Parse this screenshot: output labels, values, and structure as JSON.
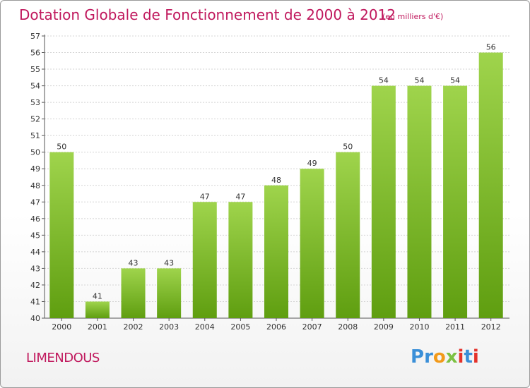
{
  "title": "Dotation Globale de Fonctionnement de 2000 à 2012",
  "subtitle": "(en milliers d'€)",
  "commune": "LIMENDOUS",
  "logo": {
    "text": "Proxiti",
    "letters": [
      "P",
      "r",
      "o",
      "x",
      "i",
      "t",
      "i"
    ],
    "colors": [
      "#3a8fd8",
      "#3a8fd8",
      "#f29a1a",
      "#7cc142",
      "#e4322b",
      "#3a8fd8",
      "#e4322b"
    ]
  },
  "colors": {
    "accent": "#c0185d",
    "bar_top": "#9fd44c",
    "bar_bottom": "#5f9e10",
    "grid": "#d4d4d4"
  },
  "chart_data": {
    "type": "bar",
    "categories": [
      "2000",
      "2001",
      "2002",
      "2003",
      "2004",
      "2005",
      "2006",
      "2007",
      "2008",
      "2009",
      "2010",
      "2011",
      "2012"
    ],
    "values": [
      50,
      41,
      43,
      43,
      47,
      47,
      48,
      49,
      50,
      54,
      54,
      54,
      56
    ],
    "title": "Dotation Globale de Fonctionnement de 2000 à 2012",
    "subtitle": "(en milliers d'€)",
    "xlabel": "",
    "ylabel": "",
    "ylim": [
      40,
      57
    ],
    "yticks": [
      40,
      41,
      42,
      43,
      44,
      45,
      46,
      47,
      48,
      49,
      50,
      51,
      52,
      53,
      54,
      55,
      56,
      57
    ],
    "grid": true,
    "data_labels": true
  }
}
